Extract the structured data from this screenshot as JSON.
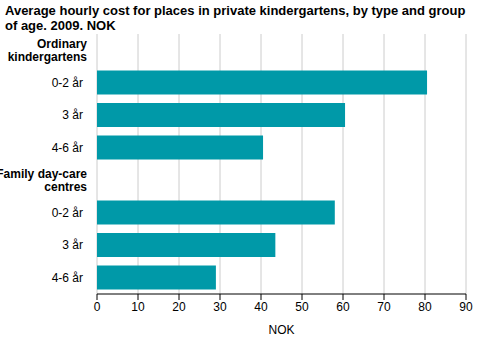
{
  "chart_data": {
    "type": "bar",
    "orientation": "horizontal",
    "title": "Average hourly cost for places in private kindergartens, by type and group of age. 2009. NOK",
    "groups": [
      {
        "name": "Ordinary kindergartens",
        "categories": [
          "0-2 år",
          "3 år",
          "4-6 år"
        ],
        "values": [
          80.5,
          60.5,
          40.5
        ]
      },
      {
        "name": "Family day-care centres",
        "categories": [
          "0-2 år",
          "3 år",
          "4-6 år"
        ],
        "values": [
          58,
          43.5,
          29
        ]
      }
    ],
    "color": "#0099a8",
    "xlim": [
      0,
      90
    ],
    "xticks": [
      0,
      10,
      20,
      30,
      40,
      50,
      60,
      70,
      80,
      90
    ],
    "x_label": "NOK",
    "grid": true
  }
}
